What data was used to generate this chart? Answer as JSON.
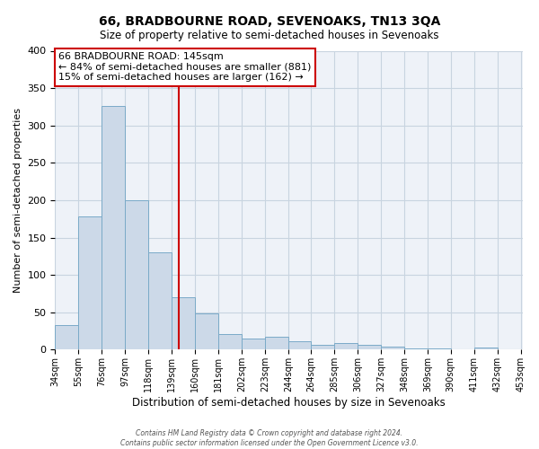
{
  "title": "66, BRADBOURNE ROAD, SEVENOAKS, TN13 3QA",
  "subtitle": "Size of property relative to semi-detached houses in Sevenoaks",
  "xlabel": "Distribution of semi-detached houses by size in Sevenoaks",
  "ylabel": "Number of semi-detached properties",
  "bin_edges": [
    34,
    55,
    76,
    97,
    118,
    139,
    160,
    181,
    202,
    223,
    244,
    264,
    285,
    306,
    327,
    348,
    369,
    390,
    411,
    432,
    453
  ],
  "bin_counts": [
    33,
    178,
    326,
    200,
    130,
    70,
    48,
    21,
    15,
    17,
    11,
    6,
    9,
    7,
    4,
    2,
    2,
    1,
    3,
    1
  ],
  "property_size": 145,
  "bar_facecolor": "#ccd9e8",
  "bar_edgecolor": "#7aaac8",
  "vline_color": "#cc0000",
  "annotation_box_edgecolor": "#cc0000",
  "grid_color": "#c8d4e0",
  "background_color": "#eef2f8",
  "ylim": [
    0,
    400
  ],
  "yticks": [
    0,
    50,
    100,
    150,
    200,
    250,
    300,
    350,
    400
  ],
  "annotation_title": "66 BRADBOURNE ROAD: 145sqm",
  "annotation_line1": "← 84% of semi-detached houses are smaller (881)",
  "annotation_line2": "15% of semi-detached houses are larger (162) →",
  "footer_line1": "Contains HM Land Registry data © Crown copyright and database right 2024.",
  "footer_line2": "Contains public sector information licensed under the Open Government Licence v3.0."
}
